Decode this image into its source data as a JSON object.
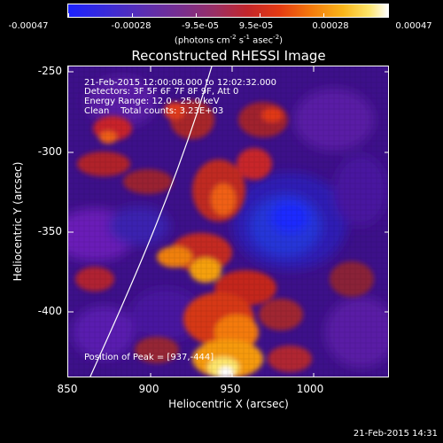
{
  "colorbar": {
    "tick_labels": [
      "-0.00047",
      "-0.00028",
      "-9.5e-05",
      "9.5e-05",
      "0.00028",
      "0.00047"
    ],
    "units_main": "(photons cm",
    "units_exp1": "-2",
    "units_mid": " s",
    "units_exp2": "-1",
    "units_mid2": " asec",
    "units_exp3": "-2",
    "units_end": ")"
  },
  "plot": {
    "title": "Reconstructed RHESSI Image",
    "xlabel": "Heliocentric X (arcsec)",
    "ylabel": "Heliocentric Y (arcsec)",
    "x_ticks": [
      "850",
      "900",
      "950",
      "1000"
    ],
    "y_ticks": [
      "-250",
      "-300",
      "-350",
      "-400"
    ],
    "x_range": [
      850,
      1040
    ],
    "y_range": [
      -445,
      -250
    ]
  },
  "annotations": {
    "line1": "21-Feb-2015 12:00:08.000 to 12:02:32.000",
    "line2": "Detectors: 3F 5F 6F 7F 8F 9F, Att 0",
    "line3": "Energy Range: 12.0 - 25.0 keV",
    "line4": "Clean    Total counts: 3.23E+03",
    "peak": "Position of Peak = [937,-444]"
  },
  "footer": {
    "timestamp": "21-Feb-2015 14:31"
  },
  "colors": {
    "background": "#000000",
    "foreground": "#ffffff",
    "low": "#1c22ff",
    "mid": "#3c0f88",
    "high": "#e43a12",
    "peak": "#ffffff"
  }
}
